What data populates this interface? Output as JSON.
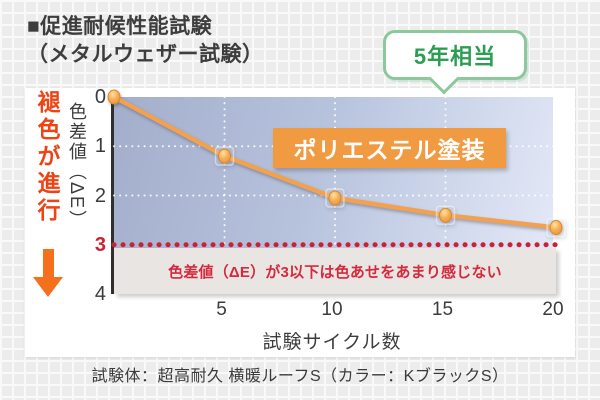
{
  "title": {
    "line1": "■促進耐候性能試験",
    "line2": "（メタルウェザー試験）"
  },
  "badge": {
    "label": "5年相当"
  },
  "fade_label": "褪色が進行",
  "caption": "試験体：超高耐久 横暖ルーフS（カラー：KブラックS）",
  "chart_data": {
    "type": "line",
    "title": "促進耐候性能試験（メタルウェザー試験）",
    "x": [
      0,
      5,
      10,
      15,
      20
    ],
    "series": [
      {
        "name": "ポリエステル塗装",
        "values": [
          0,
          1.2,
          2.05,
          2.4,
          2.65
        ]
      }
    ],
    "xlabel": "試験サイクル数",
    "ylabel": "色差値（ΔE）",
    "xlim": [
      0,
      20
    ],
    "ylim": [
      0,
      4
    ],
    "y_axis_inverted_down": true,
    "x_ticks": [
      5,
      10,
      15,
      20
    ],
    "y_ticks": [
      0,
      1,
      2,
      3,
      4
    ],
    "y_gridlines": [
      1,
      2
    ],
    "grid": "white-dotted",
    "legend_position": "inside-label-box",
    "threshold": {
      "value": 3,
      "label": "色差値（ΔE）が3以下は色あせをあまり感じない"
    },
    "annotation": {
      "label": "5年相当",
      "points_to_x": 15
    }
  },
  "colors": {
    "series_line": "#f1a14f",
    "marker_stroke": "#da8a2a",
    "threshold_red": "#cc2133",
    "note_text": "#d42a3d",
    "badge_green": "#2b9e53",
    "badge_border": "#8cc89b",
    "fade_orange": "#ee4414",
    "arrow_orange": "#f4701c",
    "label_box_orange": "#f09a41",
    "plot_gradient_dark": "#a3aecb",
    "plot_gradient_light": "#e5eaf8"
  }
}
